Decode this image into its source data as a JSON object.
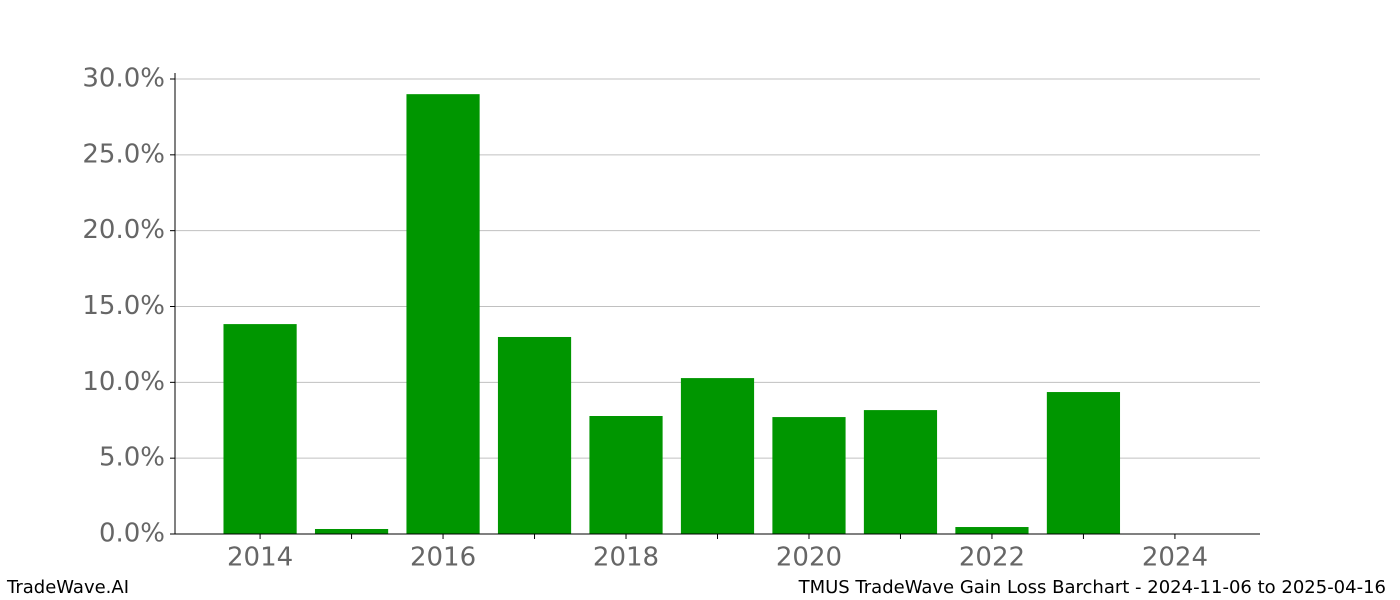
{
  "chart_data": {
    "type": "bar",
    "footer_left": "TradeWave.AI",
    "footer_right": "TMUS TradeWave Gain Loss Barchart - 2024-11-06 to 2025-04-16",
    "x": [
      2014,
      2015,
      2016,
      2017,
      2018,
      2019,
      2020,
      2021,
      2022,
      2023
    ],
    "values": [
      13.84,
      0.33,
      29.0,
      12.99,
      7.78,
      10.28,
      7.71,
      8.17,
      0.46,
      9.36
    ],
    "color": "#009600",
    "xlim": [
      2013.07,
      2024.93
    ],
    "xticks": [
      2014,
      2016,
      2018,
      2020,
      2022,
      2024
    ],
    "ylim": [
      0,
      30
    ],
    "yticks": [
      {
        "value": 0,
        "label": "0.0%"
      },
      {
        "value": 5,
        "label": "5.0%"
      },
      {
        "value": 10,
        "label": "10.0%"
      },
      {
        "value": 15,
        "label": "15.0%"
      },
      {
        "value": 20,
        "label": "20.0%"
      },
      {
        "value": 25,
        "label": "25.0%"
      },
      {
        "value": 30,
        "label": "30.0%"
      }
    ],
    "grid": true
  }
}
